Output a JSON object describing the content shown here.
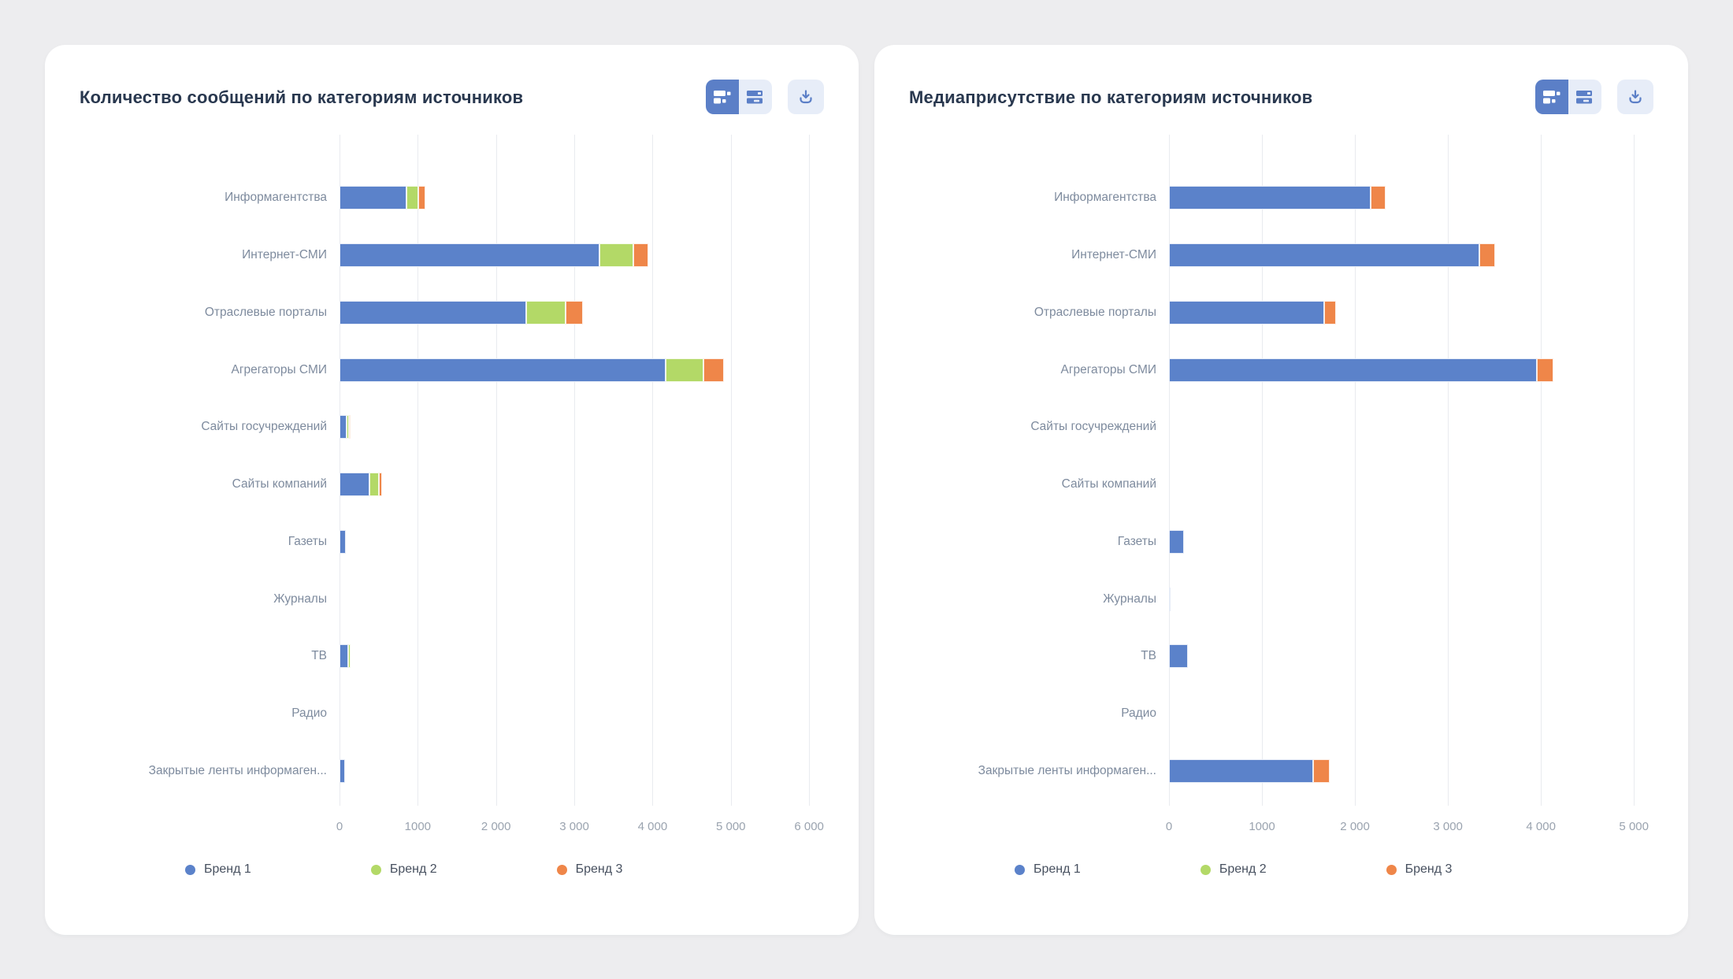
{
  "colors": {
    "brand1": "#5b82ca",
    "brand2": "#b3d967",
    "brand3": "#ef8649",
    "grid": "#e9ebef",
    "title": "#29384f",
    "category_label": "#7e8b9e",
    "axis_label": "#9aa3af",
    "legend_label": "#47505f",
    "toolbar_active_bg": "#5b7fc7",
    "toolbar_inactive_bg": "#e7edf8",
    "card_bg": "#ffffff",
    "page_bg": "#ededef"
  },
  "toolbar": {
    "icons": [
      "stacked-horizontal-bars-icon",
      "grouped-horizontal-bars-icon",
      "download-icon"
    ]
  },
  "chart_data": [
    {
      "type": "bar",
      "orientation": "horizontal",
      "stacked": true,
      "grid": "vertical",
      "legend_position": "bottom",
      "title": "Количество сообщений по категориям источников",
      "categories": [
        "Информагентства",
        "Интернет-СМИ",
        "Отраслевые порталы",
        "Агрегаторы СМИ",
        "Сайты госучреждений",
        "Сайты компаний",
        "Газеты",
        "Журналы",
        "ТВ",
        "Радио",
        "Закрытые ленты информаген..."
      ],
      "series": [
        {
          "name": "Бренд 1",
          "color": "#5b82ca",
          "values": [
            860,
            3320,
            2390,
            4170,
            90,
            380,
            80,
            0,
            110,
            0,
            75
          ]
        },
        {
          "name": "Бренд 2",
          "color": "#b3d967",
          "values": [
            150,
            430,
            500,
            480,
            30,
            120,
            0,
            0,
            30,
            0,
            0
          ]
        },
        {
          "name": "Бренд 3",
          "color": "#ef8649",
          "values": [
            90,
            200,
            220,
            260,
            25,
            40,
            0,
            0,
            0,
            0,
            0
          ]
        }
      ],
      "xlim": [
        0,
        6000
      ],
      "x_tick_step": 1000,
      "x_tick_labels": [
        "0",
        "1000",
        "2 000",
        "3 000",
        "4 000",
        "5 000",
        "6 000"
      ],
      "axis_range_render": [
        0,
        6190
      ]
    },
    {
      "type": "bar",
      "orientation": "horizontal",
      "stacked": true,
      "grid": "vertical",
      "legend_position": "bottom",
      "title": "Медиаприсутствие по категориям источников",
      "categories": [
        "Информагентства",
        "Интернет-СМИ",
        "Отраслевые порталы",
        "Агрегаторы СМИ",
        "Сайты госучреждений",
        "Сайты компаний",
        "Газеты",
        "Журналы",
        "ТВ",
        "Радио",
        "Закрытые ленты информаген..."
      ],
      "series": [
        {
          "name": "Бренд 1",
          "color": "#5b82ca",
          "values": [
            2170,
            3340,
            1665,
            3955,
            0,
            0,
            160,
            12,
            200,
            0,
            1550
          ]
        },
        {
          "name": "Бренд 2",
          "color": "#b3d967",
          "values": [
            0,
            0,
            0,
            0,
            0,
            0,
            0,
            0,
            0,
            0,
            0
          ]
        },
        {
          "name": "Бренд 3",
          "color": "#ef8649",
          "values": [
            160,
            165,
            135,
            180,
            0,
            0,
            0,
            0,
            0,
            0,
            175
          ]
        }
      ],
      "xlim": [
        0,
        5000
      ],
      "x_tick_step": 1000,
      "x_tick_labels": [
        "0",
        "1000",
        "2 000",
        "3 000",
        "4 000",
        "5 000"
      ],
      "axis_range_render": [
        0,
        5210
      ]
    }
  ]
}
